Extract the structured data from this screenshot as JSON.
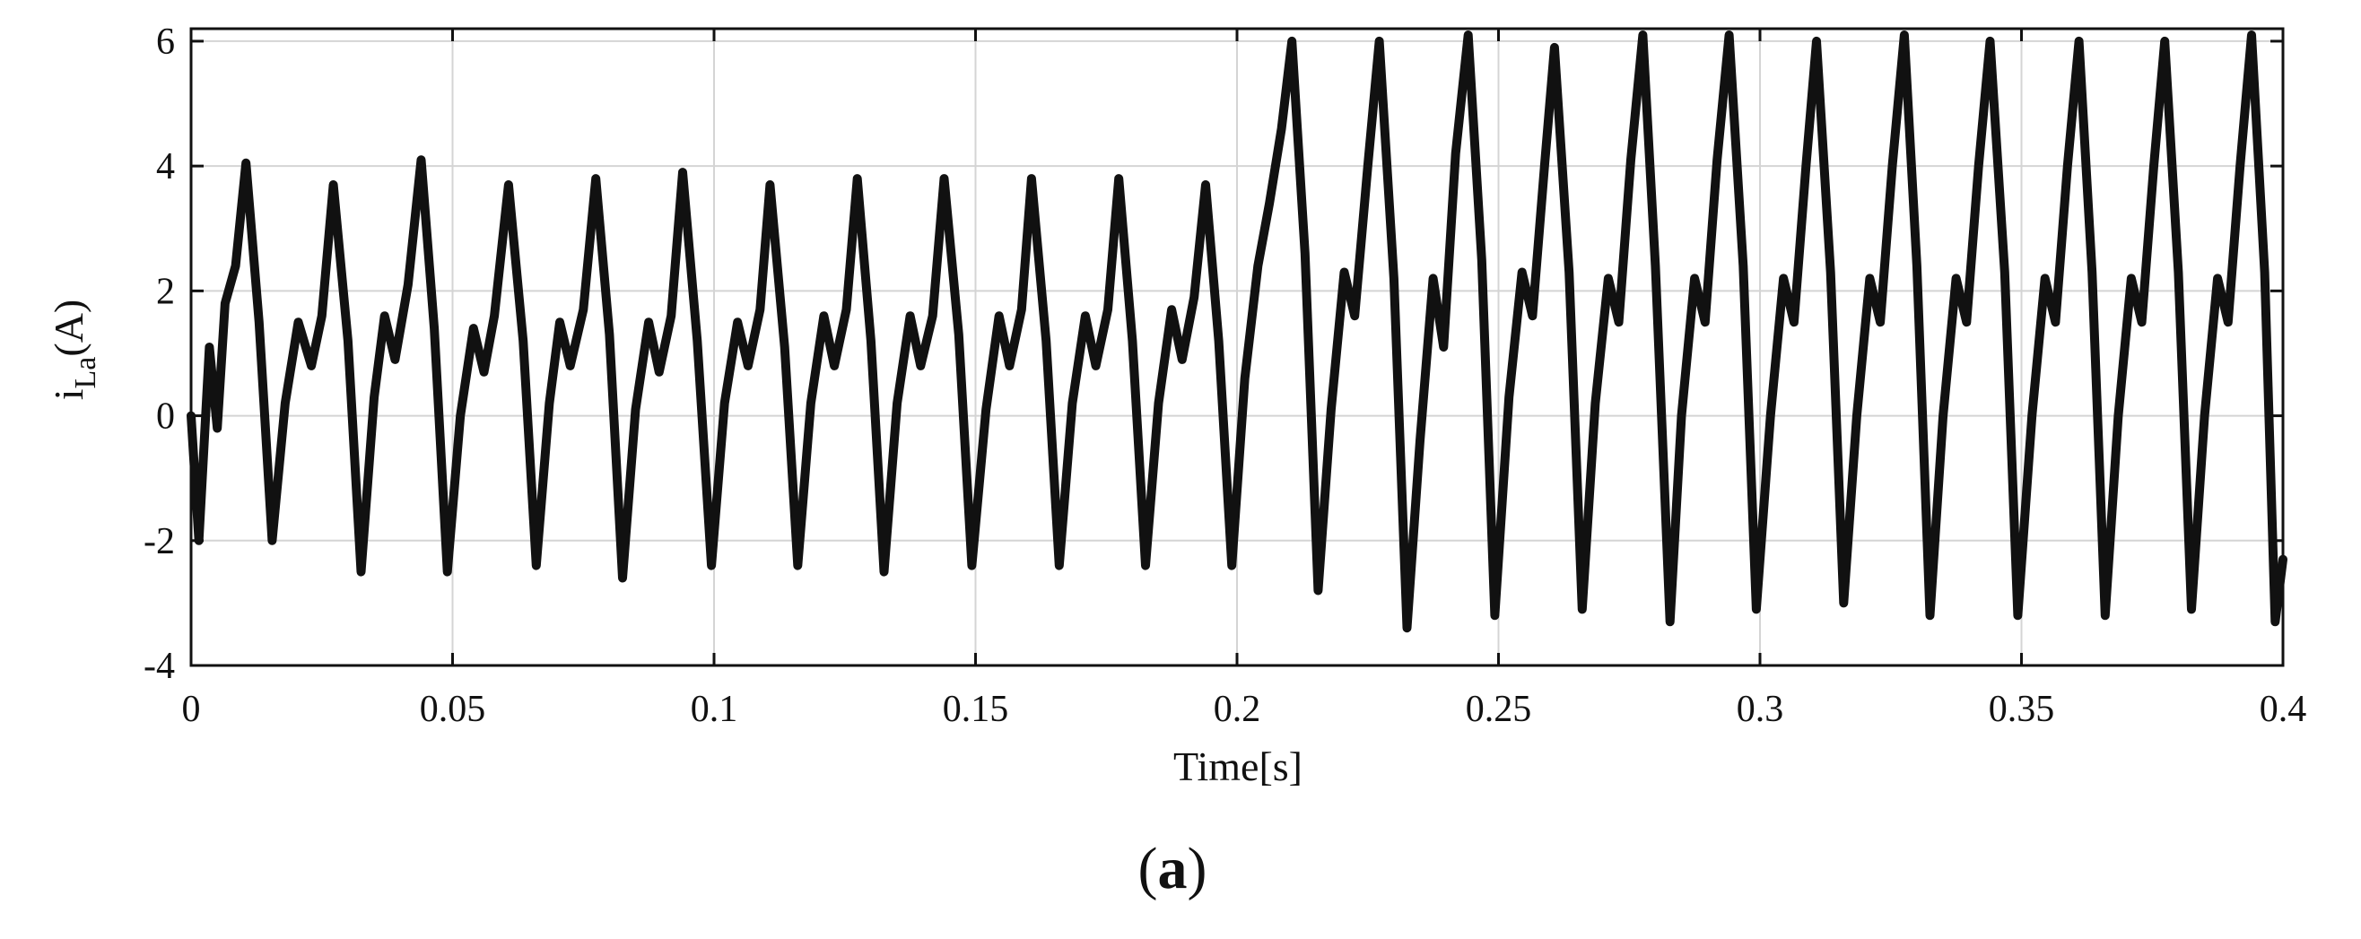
{
  "chart_data": {
    "type": "line",
    "title": "",
    "xlabel": "Time[s]",
    "ylabel": "i",
    "ylabel_subscript": "La",
    "ylabel_unit": "(A)",
    "panel_label_open": "(",
    "panel_label_letter": "a",
    "panel_label_close": ")",
    "xlim": [
      0,
      0.4
    ],
    "ylim": [
      -4,
      6.2
    ],
    "xticks": [
      0,
      0.05,
      0.1,
      0.15,
      0.2,
      0.25,
      0.3,
      0.35,
      0.4
    ],
    "xtick_labels": [
      "0",
      "0.05",
      "0.1",
      "0.15",
      "0.2",
      "0.25",
      "0.3",
      "0.35",
      "0.4"
    ],
    "yticks": [
      -4,
      -2,
      0,
      2,
      4,
      6
    ],
    "ytick_labels": [
      "-4",
      "-2",
      "0",
      "2",
      "4",
      "6"
    ],
    "grid": true,
    "fundamental_period_s": 0.01667,
    "series": [
      {
        "color": "#111111",
        "segments": [
          {
            "t_start": 0.0,
            "t_end": 0.2,
            "peak": 4.0,
            "trough": -2.5
          },
          {
            "t_start": 0.2,
            "t_end": 0.4,
            "peak": 6.0,
            "trough": -3.3
          }
        ],
        "points": [
          [
            0.0,
            0.0
          ],
          [
            0.0015,
            -2.0
          ],
          [
            0.0035,
            1.1
          ],
          [
            0.005,
            -0.2
          ],
          [
            0.0065,
            1.8
          ],
          [
            0.0085,
            2.4
          ],
          [
            0.0105,
            4.05
          ],
          [
            0.013,
            1.5
          ],
          [
            0.0155,
            -2.0
          ],
          [
            0.018,
            0.2
          ],
          [
            0.0205,
            1.5
          ],
          [
            0.023,
            0.8
          ],
          [
            0.025,
            1.6
          ],
          [
            0.0272,
            3.7
          ],
          [
            0.03,
            1.2
          ],
          [
            0.0325,
            -2.5
          ],
          [
            0.035,
            0.3
          ],
          [
            0.037,
            1.6
          ],
          [
            0.039,
            0.9
          ],
          [
            0.0415,
            2.1
          ],
          [
            0.044,
            4.1
          ],
          [
            0.0465,
            1.4
          ],
          [
            0.049,
            -2.5
          ],
          [
            0.0515,
            0.0
          ],
          [
            0.054,
            1.4
          ],
          [
            0.056,
            0.7
          ],
          [
            0.058,
            1.6
          ],
          [
            0.0607,
            3.7
          ],
          [
            0.0635,
            1.2
          ],
          [
            0.066,
            -2.4
          ],
          [
            0.0685,
            0.2
          ],
          [
            0.0705,
            1.5
          ],
          [
            0.0725,
            0.8
          ],
          [
            0.075,
            1.7
          ],
          [
            0.0774,
            3.8
          ],
          [
            0.08,
            1.3
          ],
          [
            0.0825,
            -2.6
          ],
          [
            0.085,
            0.1
          ],
          [
            0.0875,
            1.5
          ],
          [
            0.0895,
            0.7
          ],
          [
            0.0918,
            1.6
          ],
          [
            0.094,
            3.9
          ],
          [
            0.0968,
            1.2
          ],
          [
            0.0995,
            -2.4
          ],
          [
            0.102,
            0.2
          ],
          [
            0.1045,
            1.5
          ],
          [
            0.1065,
            0.8
          ],
          [
            0.1088,
            1.7
          ],
          [
            0.1107,
            3.7
          ],
          [
            0.1135,
            1.1
          ],
          [
            0.116,
            -2.4
          ],
          [
            0.1185,
            0.2
          ],
          [
            0.121,
            1.6
          ],
          [
            0.123,
            0.8
          ],
          [
            0.1253,
            1.7
          ],
          [
            0.1274,
            3.8
          ],
          [
            0.13,
            1.2
          ],
          [
            0.1325,
            -2.5
          ],
          [
            0.135,
            0.2
          ],
          [
            0.1375,
            1.6
          ],
          [
            0.1395,
            0.8
          ],
          [
            0.1418,
            1.6
          ],
          [
            0.144,
            3.8
          ],
          [
            0.1468,
            1.3
          ],
          [
            0.1493,
            -2.4
          ],
          [
            0.152,
            0.1
          ],
          [
            0.1545,
            1.6
          ],
          [
            0.1565,
            0.8
          ],
          [
            0.1588,
            1.7
          ],
          [
            0.1607,
            3.8
          ],
          [
            0.1635,
            1.2
          ],
          [
            0.166,
            -2.4
          ],
          [
            0.1685,
            0.2
          ],
          [
            0.171,
            1.6
          ],
          [
            0.173,
            0.8
          ],
          [
            0.1753,
            1.7
          ],
          [
            0.1774,
            3.8
          ],
          [
            0.18,
            1.2
          ],
          [
            0.1825,
            -2.4
          ],
          [
            0.185,
            0.2
          ],
          [
            0.1875,
            1.7
          ],
          [
            0.1895,
            0.9
          ],
          [
            0.1918,
            1.9
          ],
          [
            0.194,
            3.7
          ],
          [
            0.1965,
            1.2
          ],
          [
            0.199,
            -2.4
          ],
          [
            0.2015,
            0.6
          ],
          [
            0.204,
            2.4
          ],
          [
            0.2062,
            3.4
          ],
          [
            0.2085,
            4.6
          ],
          [
            0.2105,
            6.0
          ],
          [
            0.213,
            2.6
          ],
          [
            0.2155,
            -2.8
          ],
          [
            0.218,
            0.1
          ],
          [
            0.2205,
            2.3
          ],
          [
            0.2225,
            1.6
          ],
          [
            0.225,
            4.0
          ],
          [
            0.2272,
            6.0
          ],
          [
            0.23,
            2.2
          ],
          [
            0.2325,
            -3.4
          ],
          [
            0.235,
            -0.4
          ],
          [
            0.2375,
            2.2
          ],
          [
            0.2395,
            1.1
          ],
          [
            0.2418,
            4.2
          ],
          [
            0.2442,
            6.1
          ],
          [
            0.2468,
            2.5
          ],
          [
            0.2493,
            -3.2
          ],
          [
            0.252,
            0.3
          ],
          [
            0.2545,
            2.3
          ],
          [
            0.2565,
            1.6
          ],
          [
            0.2588,
            4.0
          ],
          [
            0.2607,
            5.9
          ],
          [
            0.2635,
            2.3
          ],
          [
            0.266,
            -3.1
          ],
          [
            0.2685,
            0.2
          ],
          [
            0.271,
            2.2
          ],
          [
            0.273,
            1.5
          ],
          [
            0.2753,
            4.1
          ],
          [
            0.2776,
            6.1
          ],
          [
            0.28,
            2.4
          ],
          [
            0.2828,
            -3.3
          ],
          [
            0.285,
            0.0
          ],
          [
            0.2875,
            2.2
          ],
          [
            0.2895,
            1.5
          ],
          [
            0.2918,
            4.1
          ],
          [
            0.2941,
            6.1
          ],
          [
            0.2968,
            2.4
          ],
          [
            0.2993,
            -3.1
          ],
          [
            0.302,
            0.0
          ],
          [
            0.3045,
            2.2
          ],
          [
            0.3065,
            1.5
          ],
          [
            0.3088,
            4.0
          ],
          [
            0.3108,
            6.0
          ],
          [
            0.3135,
            2.3
          ],
          [
            0.316,
            -3.0
          ],
          [
            0.3185,
            0.0
          ],
          [
            0.321,
            2.2
          ],
          [
            0.323,
            1.5
          ],
          [
            0.3253,
            4.0
          ],
          [
            0.3276,
            6.1
          ],
          [
            0.33,
            2.4
          ],
          [
            0.3325,
            -3.2
          ],
          [
            0.335,
            0.0
          ],
          [
            0.3375,
            2.2
          ],
          [
            0.3395,
            1.5
          ],
          [
            0.3418,
            4.0
          ],
          [
            0.344,
            6.0
          ],
          [
            0.3468,
            2.3
          ],
          [
            0.3493,
            -3.2
          ],
          [
            0.352,
            0.0
          ],
          [
            0.3545,
            2.2
          ],
          [
            0.3565,
            1.5
          ],
          [
            0.3588,
            4.0
          ],
          [
            0.361,
            6.0
          ],
          [
            0.3635,
            2.3
          ],
          [
            0.366,
            -3.2
          ],
          [
            0.3685,
            0.0
          ],
          [
            0.371,
            2.2
          ],
          [
            0.373,
            1.5
          ],
          [
            0.3753,
            4.0
          ],
          [
            0.3774,
            6.0
          ],
          [
            0.38,
            2.3
          ],
          [
            0.3825,
            -3.1
          ],
          [
            0.385,
            0.0
          ],
          [
            0.3875,
            2.2
          ],
          [
            0.3895,
            1.5
          ],
          [
            0.3918,
            4.0
          ],
          [
            0.394,
            6.1
          ],
          [
            0.3965,
            2.3
          ],
          [
            0.3985,
            -3.3
          ],
          [
            0.4,
            -2.3
          ]
        ]
      }
    ]
  }
}
